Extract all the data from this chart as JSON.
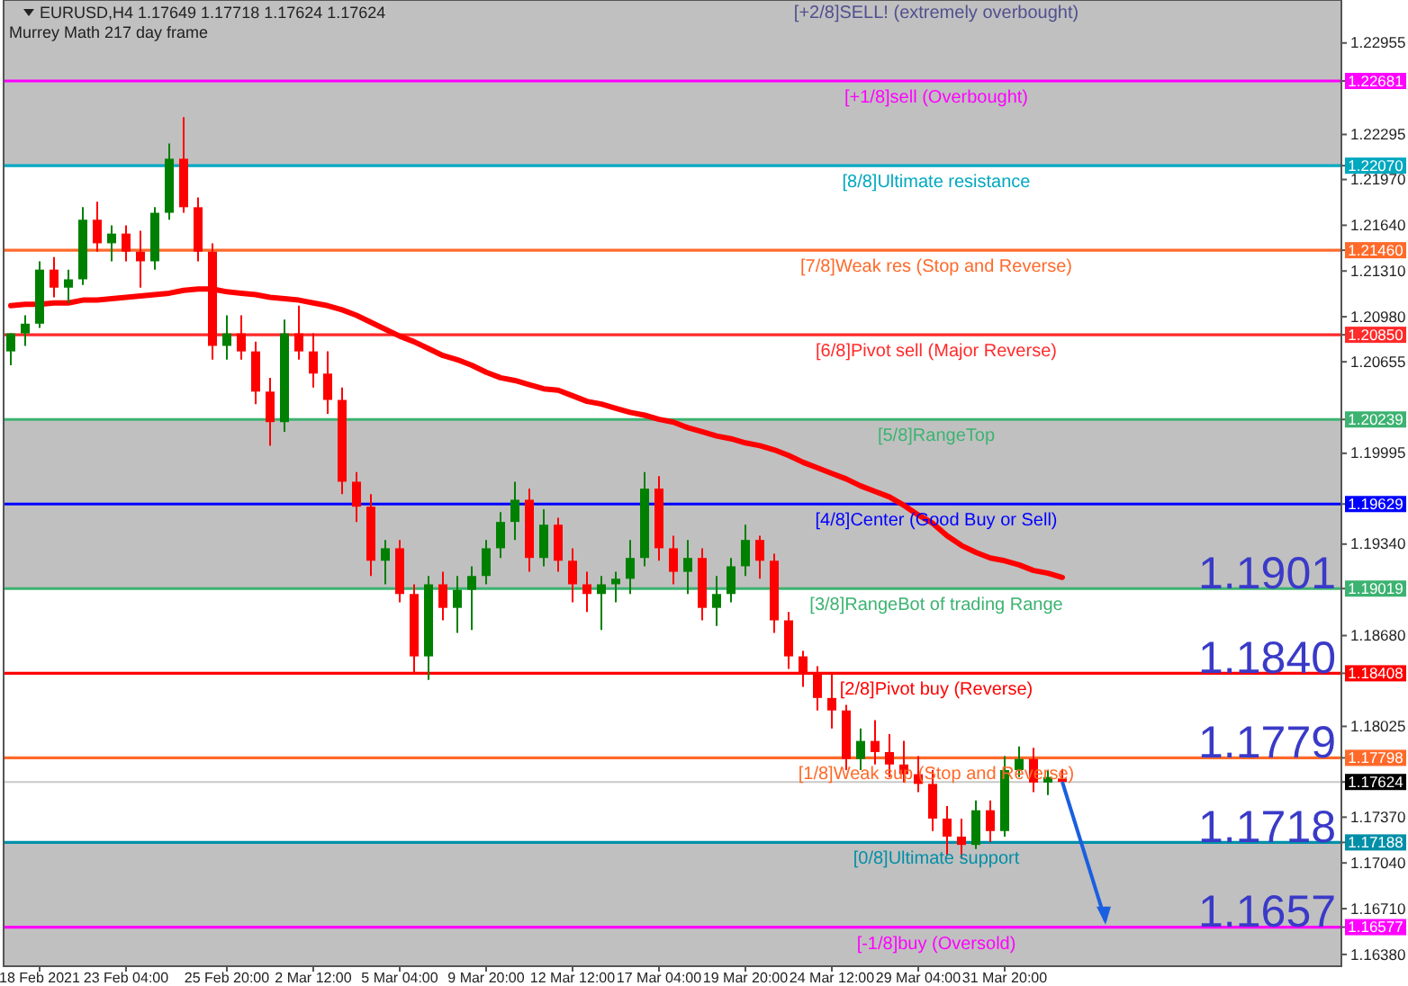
{
  "chart_data": {
    "type": "candlestick",
    "title": "EURUSD,H4  1.17649 1.17718 1.17624 1.17624",
    "subtitle": "Murrey Math 217 day frame",
    "categories": [
      null,
      null,
      "18 Feb 2021",
      null,
      null,
      null,
      null,
      null,
      "23 Feb 04:00",
      null,
      null,
      null,
      null,
      null,
      null,
      "25 Feb 20:00",
      null,
      null,
      null,
      null,
      null,
      "2 Mar 12:00",
      null,
      null,
      null,
      null,
      null,
      "5 Mar 04:00",
      null,
      null,
      null,
      null,
      null,
      "9 Mar 20:00",
      null,
      null,
      null,
      null,
      null,
      "12 Mar 12:00",
      null,
      null,
      null,
      null,
      null,
      "17 Mar 04:00",
      null,
      null,
      null,
      null,
      null,
      "19 Mar 20:00",
      null,
      null,
      null,
      null,
      null,
      "24 Mar 12:00",
      null,
      null,
      null,
      null,
      null,
      "29 Mar 04:00",
      null,
      null,
      null,
      null,
      null,
      "31 Mar 20:00",
      null,
      null,
      null,
      null
    ],
    "ohlc": [
      [
        1.2073,
        1.2086,
        1.2063,
        1.2086
      ],
      [
        1.2086,
        1.2099,
        1.2077,
        1.2093
      ],
      [
        1.2093,
        1.2138,
        1.209,
        1.2132
      ],
      [
        1.2132,
        1.2141,
        1.2112,
        1.2119
      ],
      [
        1.2119,
        1.2132,
        1.2108,
        1.2125
      ],
      [
        1.2125,
        1.2177,
        1.2121,
        1.2168
      ],
      [
        1.2168,
        1.2181,
        1.2145,
        1.2151
      ],
      [
        1.2151,
        1.2164,
        1.2138,
        1.2158
      ],
      [
        1.2158,
        1.2164,
        1.2138,
        1.2145
      ],
      [
        1.2145,
        1.216,
        1.2119,
        1.2138
      ],
      [
        1.2138,
        1.2177,
        1.2132,
        1.2173
      ],
      [
        1.2173,
        1.2223,
        1.2168,
        1.2212
      ],
      [
        1.2212,
        1.2242,
        1.2173,
        1.2177
      ],
      [
        1.2177,
        1.2184,
        1.2138,
        1.2145
      ],
      [
        1.2145,
        1.2151,
        1.2067,
        1.2077
      ],
      [
        1.2077,
        1.2099,
        1.2067,
        1.2086
      ],
      [
        1.2086,
        1.2099,
        1.2067,
        1.2073
      ],
      [
        1.2073,
        1.208,
        1.2035,
        1.2044
      ],
      [
        1.2044,
        1.2054,
        1.2005,
        1.2022
      ],
      [
        1.2022,
        1.2096,
        1.2015,
        1.2086
      ],
      [
        1.2086,
        1.2106,
        1.2067,
        1.2073
      ],
      [
        1.2073,
        1.2086,
        1.2047,
        1.2057
      ],
      [
        1.2057,
        1.2073,
        1.2028,
        1.2038
      ],
      [
        1.2038,
        1.2047,
        1.197,
        1.1979
      ],
      [
        1.1979,
        1.1986,
        1.195,
        1.1961
      ],
      [
        1.1961,
        1.197,
        1.1911,
        1.1922
      ],
      [
        1.1922,
        1.1937,
        1.1905,
        1.1931
      ],
      [
        1.1931,
        1.1937,
        1.1892,
        1.1898
      ],
      [
        1.1898,
        1.1905,
        1.184,
        1.1853
      ],
      [
        1.1853,
        1.1911,
        1.1836,
        1.1905
      ],
      [
        1.1905,
        1.1914,
        1.1879,
        1.1888
      ],
      [
        1.1888,
        1.1911,
        1.187,
        1.1901
      ],
      [
        1.1901,
        1.1918,
        1.1872,
        1.1911
      ],
      [
        1.1911,
        1.1937,
        1.1905,
        1.1931
      ],
      [
        1.1931,
        1.1957,
        1.1924,
        1.195
      ],
      [
        1.195,
        1.1979,
        1.1937,
        1.1966
      ],
      [
        1.1966,
        1.1974,
        1.1914,
        1.1924
      ],
      [
        1.1924,
        1.1959,
        1.1918,
        1.1948
      ],
      [
        1.1948,
        1.1953,
        1.1914,
        1.1922
      ],
      [
        1.1922,
        1.1931,
        1.1892,
        1.1905
      ],
      [
        1.1905,
        1.1914,
        1.1885,
        1.1898
      ],
      [
        1.1898,
        1.1911,
        1.1872,
        1.1905
      ],
      [
        1.1905,
        1.1914,
        1.1892,
        1.1909
      ],
      [
        1.1909,
        1.1937,
        1.1898,
        1.1924
      ],
      [
        1.1924,
        1.1986,
        1.1918,
        1.1974
      ],
      [
        1.1974,
        1.1983,
        1.1922,
        1.1931
      ],
      [
        1.1931,
        1.194,
        1.1905,
        1.1914
      ],
      [
        1.1914,
        1.1937,
        1.1898,
        1.1924
      ],
      [
        1.1924,
        1.1931,
        1.1879,
        1.1888
      ],
      [
        1.1888,
        1.1911,
        1.1875,
        1.1898
      ],
      [
        1.1898,
        1.1924,
        1.1892,
        1.1918
      ],
      [
        1.1918,
        1.1948,
        1.1911,
        1.1937
      ],
      [
        1.1937,
        1.194,
        1.1909,
        1.1922
      ],
      [
        1.1922,
        1.1927,
        1.187,
        1.1879
      ],
      [
        1.1879,
        1.1885,
        1.1844,
        1.1853
      ],
      [
        1.1853,
        1.1857,
        1.1831,
        1.184
      ],
      [
        1.184,
        1.1846,
        1.1814,
        1.1823
      ],
      [
        1.1823,
        1.184,
        1.1801,
        1.1814
      ],
      [
        1.1814,
        1.1818,
        1.1771,
        1.1779
      ],
      [
        1.1779,
        1.1801,
        1.1771,
        1.1792
      ],
      [
        1.1792,
        1.1807,
        1.1775,
        1.1784
      ],
      [
        1.1784,
        1.1797,
        1.1766,
        1.1775
      ],
      [
        1.1775,
        1.1792,
        1.1762,
        1.1768
      ],
      [
        1.1768,
        1.1781,
        1.1755,
        1.1761
      ],
      [
        1.1761,
        1.1771,
        1.1727,
        1.1736
      ],
      [
        1.1736,
        1.1745,
        1.171,
        1.1723
      ],
      [
        1.1723,
        1.1736,
        1.1707,
        1.1717
      ],
      [
        1.1717,
        1.1749,
        1.1714,
        1.1742
      ],
      [
        1.1742,
        1.1749,
        1.1719,
        1.1727
      ],
      [
        1.1727,
        1.1781,
        1.1723,
        1.1771
      ],
      [
        1.1771,
        1.1788,
        1.1766,
        1.1779
      ],
      [
        1.1779,
        1.1787,
        1.1755,
        1.1762
      ],
      [
        1.1762,
        1.1771,
        1.1753,
        1.1766
      ],
      [
        1.17649,
        1.17718,
        1.17624,
        1.17624
      ]
    ],
    "series": [
      {
        "type": "line",
        "color": "#ff0000",
        "values": [
          1.2106,
          1.2107,
          1.2107,
          1.2108,
          1.2108,
          1.211,
          1.211,
          1.2111,
          1.2112,
          1.2113,
          1.2114,
          1.2115,
          1.2117,
          1.2118,
          1.2118,
          1.2116,
          1.2115,
          1.2114,
          1.2112,
          1.2111,
          1.211,
          1.2108,
          1.2106,
          1.2103,
          1.2099,
          1.2094,
          1.2089,
          1.2084,
          1.208,
          1.2075,
          1.207,
          1.2067,
          1.2063,
          1.2058,
          1.2054,
          1.2052,
          1.2049,
          1.2046,
          1.2045,
          1.2041,
          1.2037,
          1.2035,
          1.2032,
          1.2029,
          1.2027,
          1.2024,
          1.2022,
          1.2018,
          1.2015,
          1.2012,
          1.201,
          1.2007,
          1.2005,
          1.2002,
          1.1998,
          1.1993,
          1.1989,
          1.1985,
          1.1981,
          1.1976,
          1.1972,
          1.1968,
          1.1962,
          1.1955,
          1.1949,
          1.194,
          1.1933,
          1.1928,
          1.1924,
          1.1922,
          1.1919,
          1.1915,
          1.1913,
          1.191
        ]
      }
    ],
    "ylim": [
      1.16295,
      1.23265
    ],
    "yticks": [
      {
        "value": 1.22955,
        "label": "1.22955"
      },
      {
        "value": 1.22295,
        "label": "1.22295"
      },
      {
        "value": 1.2197,
        "label": "1.21970"
      },
      {
        "value": 1.2164,
        "label": "1.21640"
      },
      {
        "value": 1.2131,
        "label": "1.21310"
      },
      {
        "value": 1.2098,
        "label": "1.20980"
      },
      {
        "value": 1.20655,
        "label": "1.20655"
      },
      {
        "value": 1.19995,
        "label": "1.19995"
      },
      {
        "value": 1.1934,
        "label": "1.19340"
      },
      {
        "value": 1.1868,
        "label": "1.18680"
      },
      {
        "value": 1.18025,
        "label": "1.18025"
      },
      {
        "value": 1.1737,
        "label": "1.17370"
      },
      {
        "value": 1.1704,
        "label": "1.17040"
      },
      {
        "value": 1.1671,
        "label": "1.16710"
      },
      {
        "value": 1.1638,
        "label": "1.16380"
      },
      {
        "value": 1.22681,
        "label": "1.22681"
      },
      {
        "value": 1.2207,
        "label": "1.22070"
      },
      {
        "value": 1.2146,
        "label": "1.21460"
      },
      {
        "value": 1.2085,
        "label": "1.20850"
      },
      {
        "value": 1.20239,
        "label": "1.20239"
      },
      {
        "value": 1.19629,
        "label": "1.19629"
      },
      {
        "value": 1.19019,
        "label": "1.19019"
      },
      {
        "value": 1.18408,
        "label": "1.18408"
      },
      {
        "value": 1.17798,
        "label": "1.17798"
      },
      {
        "value": 1.17188,
        "label": "1.17188"
      },
      {
        "value": 1.16577,
        "label": "1.16577"
      },
      {
        "value": 1.17624,
        "label": "1.17624"
      }
    ],
    "bands": [
      {
        "axis": "y",
        "from": 1.2207,
        "to": 1.23265,
        "color": "#c0c0c0"
      },
      {
        "axis": "y",
        "from": 1.19019,
        "to": 1.20239,
        "color": "#c0c0c0"
      },
      {
        "axis": "y",
        "from": 1.16295,
        "to": 1.17188,
        "color": "#c0c0c0"
      }
    ],
    "ref_lines": [
      {
        "axis": "y",
        "value": 1.22681,
        "label": "[+1/8]sell (Overbought)",
        "color": "#ff00ff"
      },
      {
        "axis": "y",
        "value": 1.2207,
        "label": "[8/8]Ultimate resistance",
        "color": "#00a8c0"
      },
      {
        "axis": "y",
        "value": 1.2146,
        "label": "[7/8]Weak res (Stop and Reverse)",
        "color": "#ff6a2a"
      },
      {
        "axis": "y",
        "value": 1.2085,
        "label": "[6/8]Pivot sell (Major Reverse)",
        "color": "#ff2a2a"
      },
      {
        "axis": "y",
        "value": 1.20239,
        "label": "[5/8]RangeTop",
        "color": "#3cb371"
      },
      {
        "axis": "y",
        "value": 1.19629,
        "label": "[4/8]Center (Good Buy or Sell)",
        "color": "#0000ff"
      },
      {
        "axis": "y",
        "value": 1.19019,
        "label": "[3/8]RangeBot of trading Range",
        "color": "#3cb371"
      },
      {
        "axis": "y",
        "value": 1.18408,
        "label": "[2/8]Pivot buy (Reverse)",
        "color": "#ff0000"
      },
      {
        "axis": "y",
        "value": 1.17798,
        "label": "[1/8]Weak sup (Stop and Reverse)",
        "color": "#ff6a2a"
      },
      {
        "axis": "y",
        "value": 1.17188,
        "label": "[0/8]Ultimate support",
        "color": "#008fa8"
      },
      {
        "axis": "y",
        "value": 1.16577,
        "label": "[-1/8]buy (Oversold)",
        "color": "#ff00ff"
      },
      {
        "axis": "y",
        "value": 1.17624,
        "label": null,
        "color": "#c8c8c8"
      }
    ],
    "annotations": [
      "[+2/8]SELL! (extremely overbought)",
      {
        "text": "1.1901",
        "y": 1.1901
      },
      {
        "text": "1.1840",
        "y": 1.184
      },
      {
        "text": "1.1779",
        "y": 1.1779
      },
      {
        "text": "1.1718",
        "y": 1.1718
      },
      {
        "text": "1.1657",
        "y": 1.1657
      }
    ]
  }
}
